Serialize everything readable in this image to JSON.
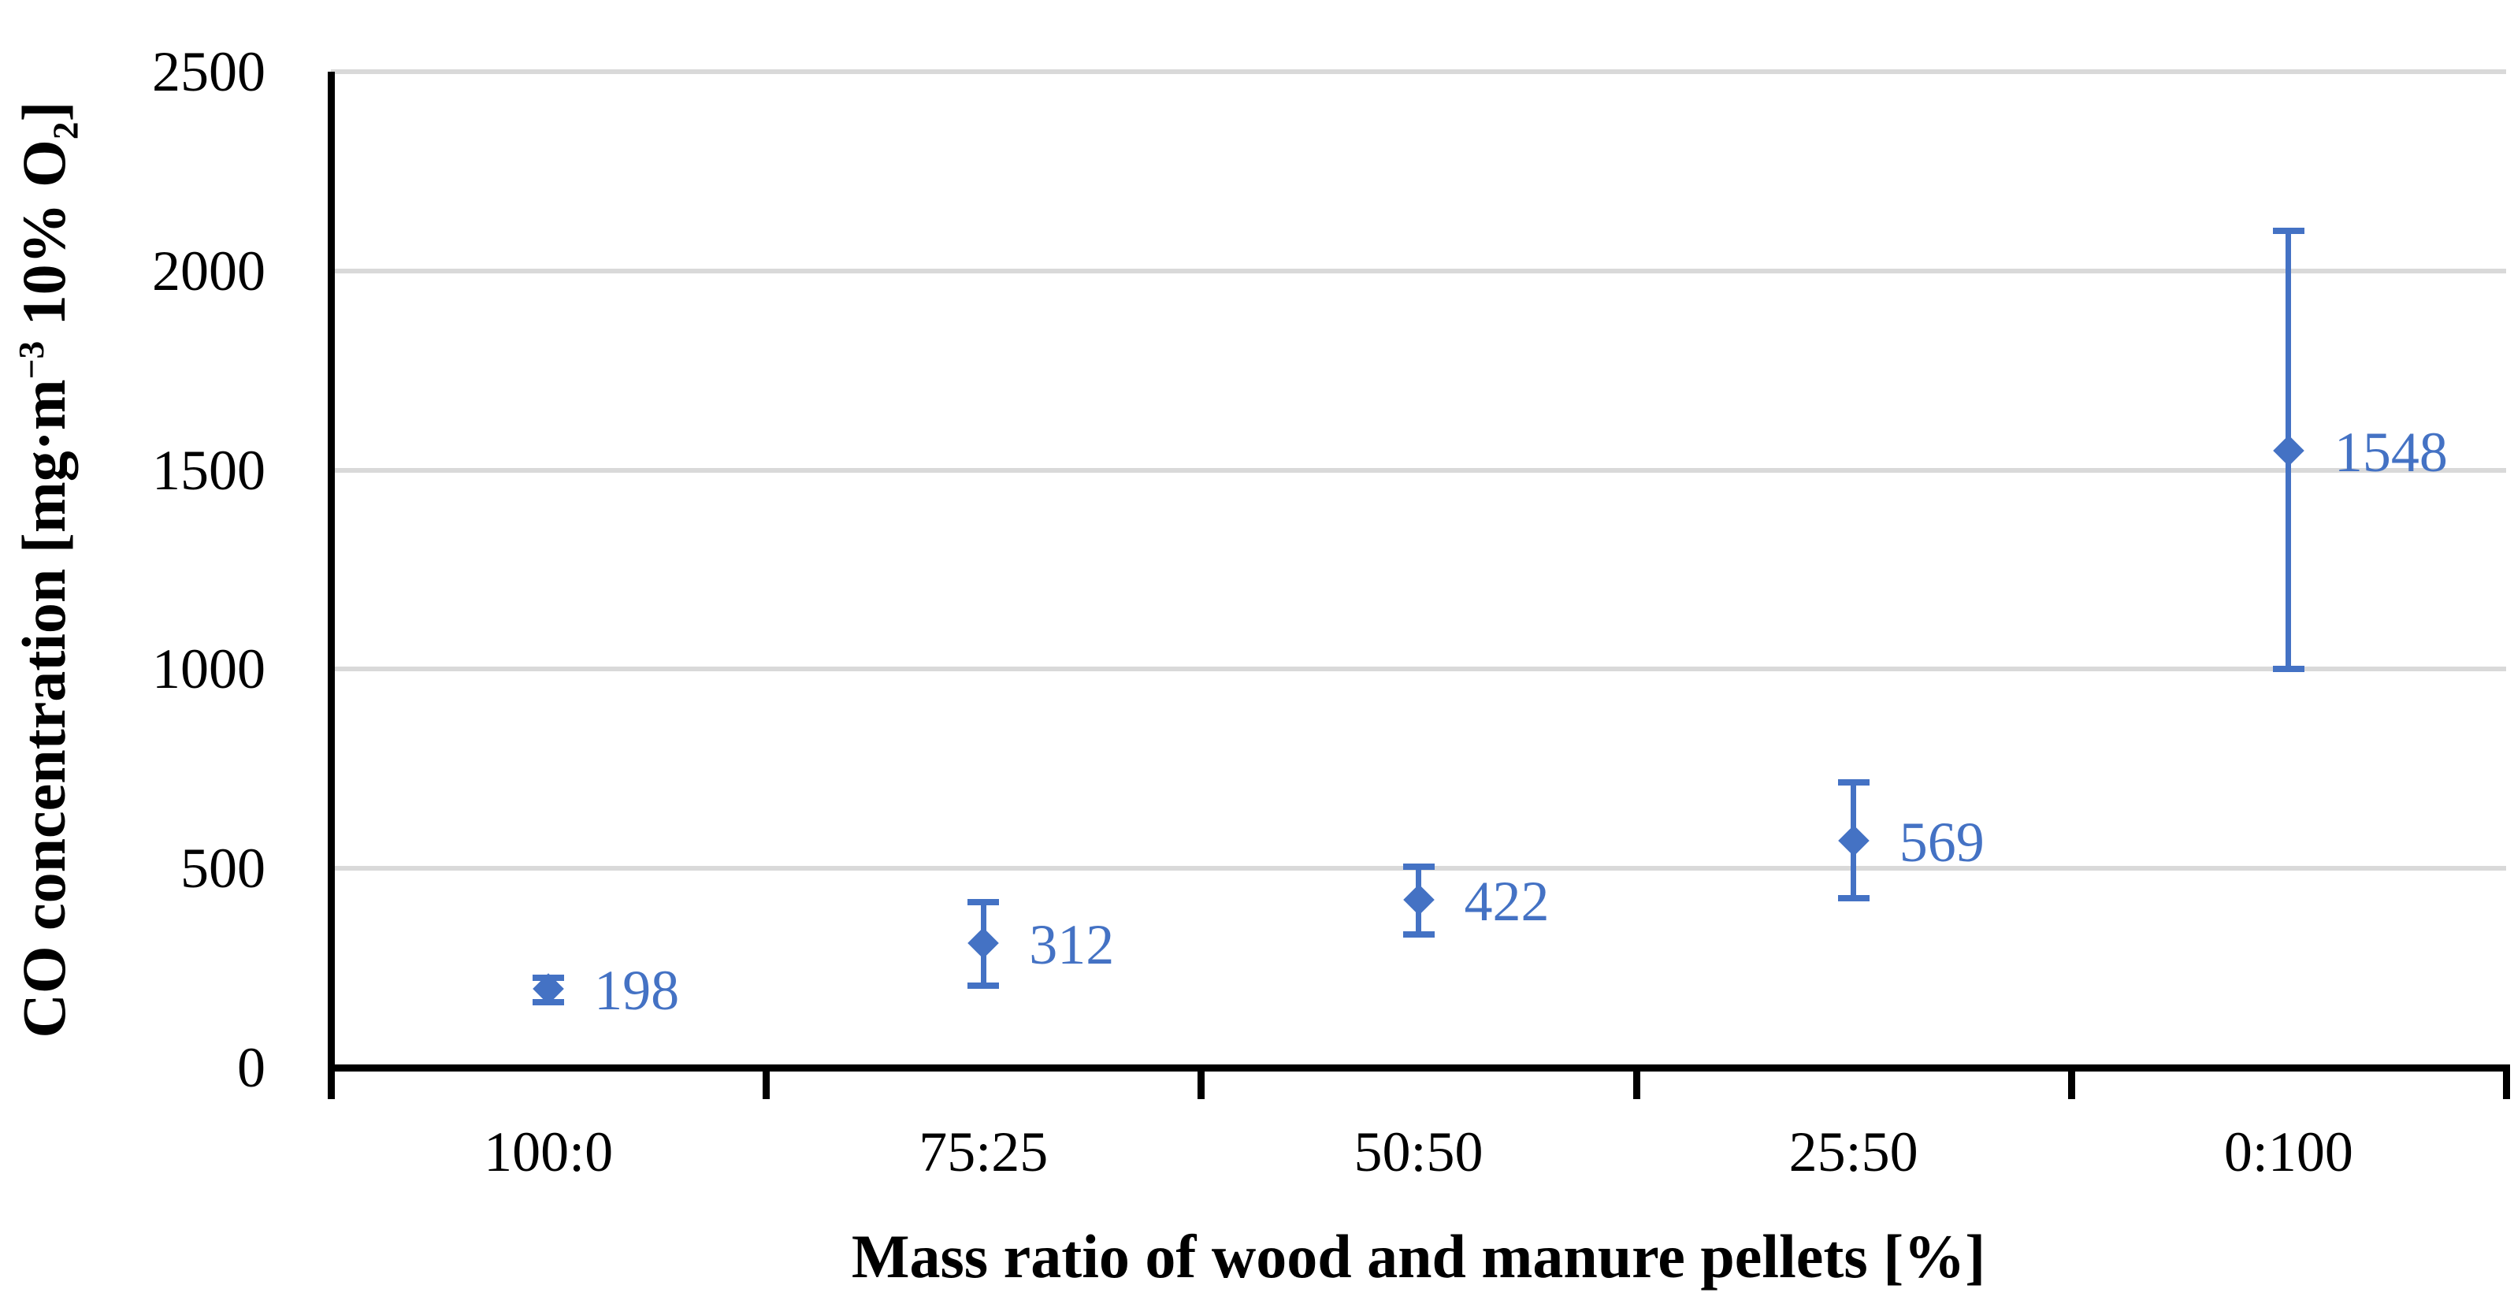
{
  "figure": {
    "background": "#ffffff"
  },
  "chart_data": {
    "type": "scatter",
    "title": "",
    "xlabel": "Mass ratio of wood and manure pellets [%]",
    "ylabel": "CO concentration [mg·m−3 10% O2]",
    "ylabel_parts": {
      "prefix": "CO concentration [mg·m",
      "superscript": "−3",
      "mid": " 10% O",
      "subscript": "2",
      "suffix": "]"
    },
    "categories": [
      "100:0",
      "75:25",
      "50:50",
      "25:50",
      "0:100"
    ],
    "values": [
      198,
      312,
      422,
      569,
      1548
    ],
    "data_labels": [
      "198",
      "312",
      "422",
      "569",
      "1548"
    ],
    "error_ranges": [
      [
        165,
        225
      ],
      [
        205,
        415
      ],
      [
        335,
        505
      ],
      [
        425,
        715
      ],
      [
        1000,
        2100
      ]
    ],
    "ylim": [
      0,
      2500
    ],
    "yticks": [
      0,
      500,
      1000,
      1500,
      2000,
      2500
    ],
    "grid": "horizontal",
    "legend": "none",
    "marker": "diamond",
    "colors": {
      "series": "#4472C4",
      "gridline": "#D9D9D9",
      "axis": "#000000",
      "text": "#000000"
    }
  }
}
